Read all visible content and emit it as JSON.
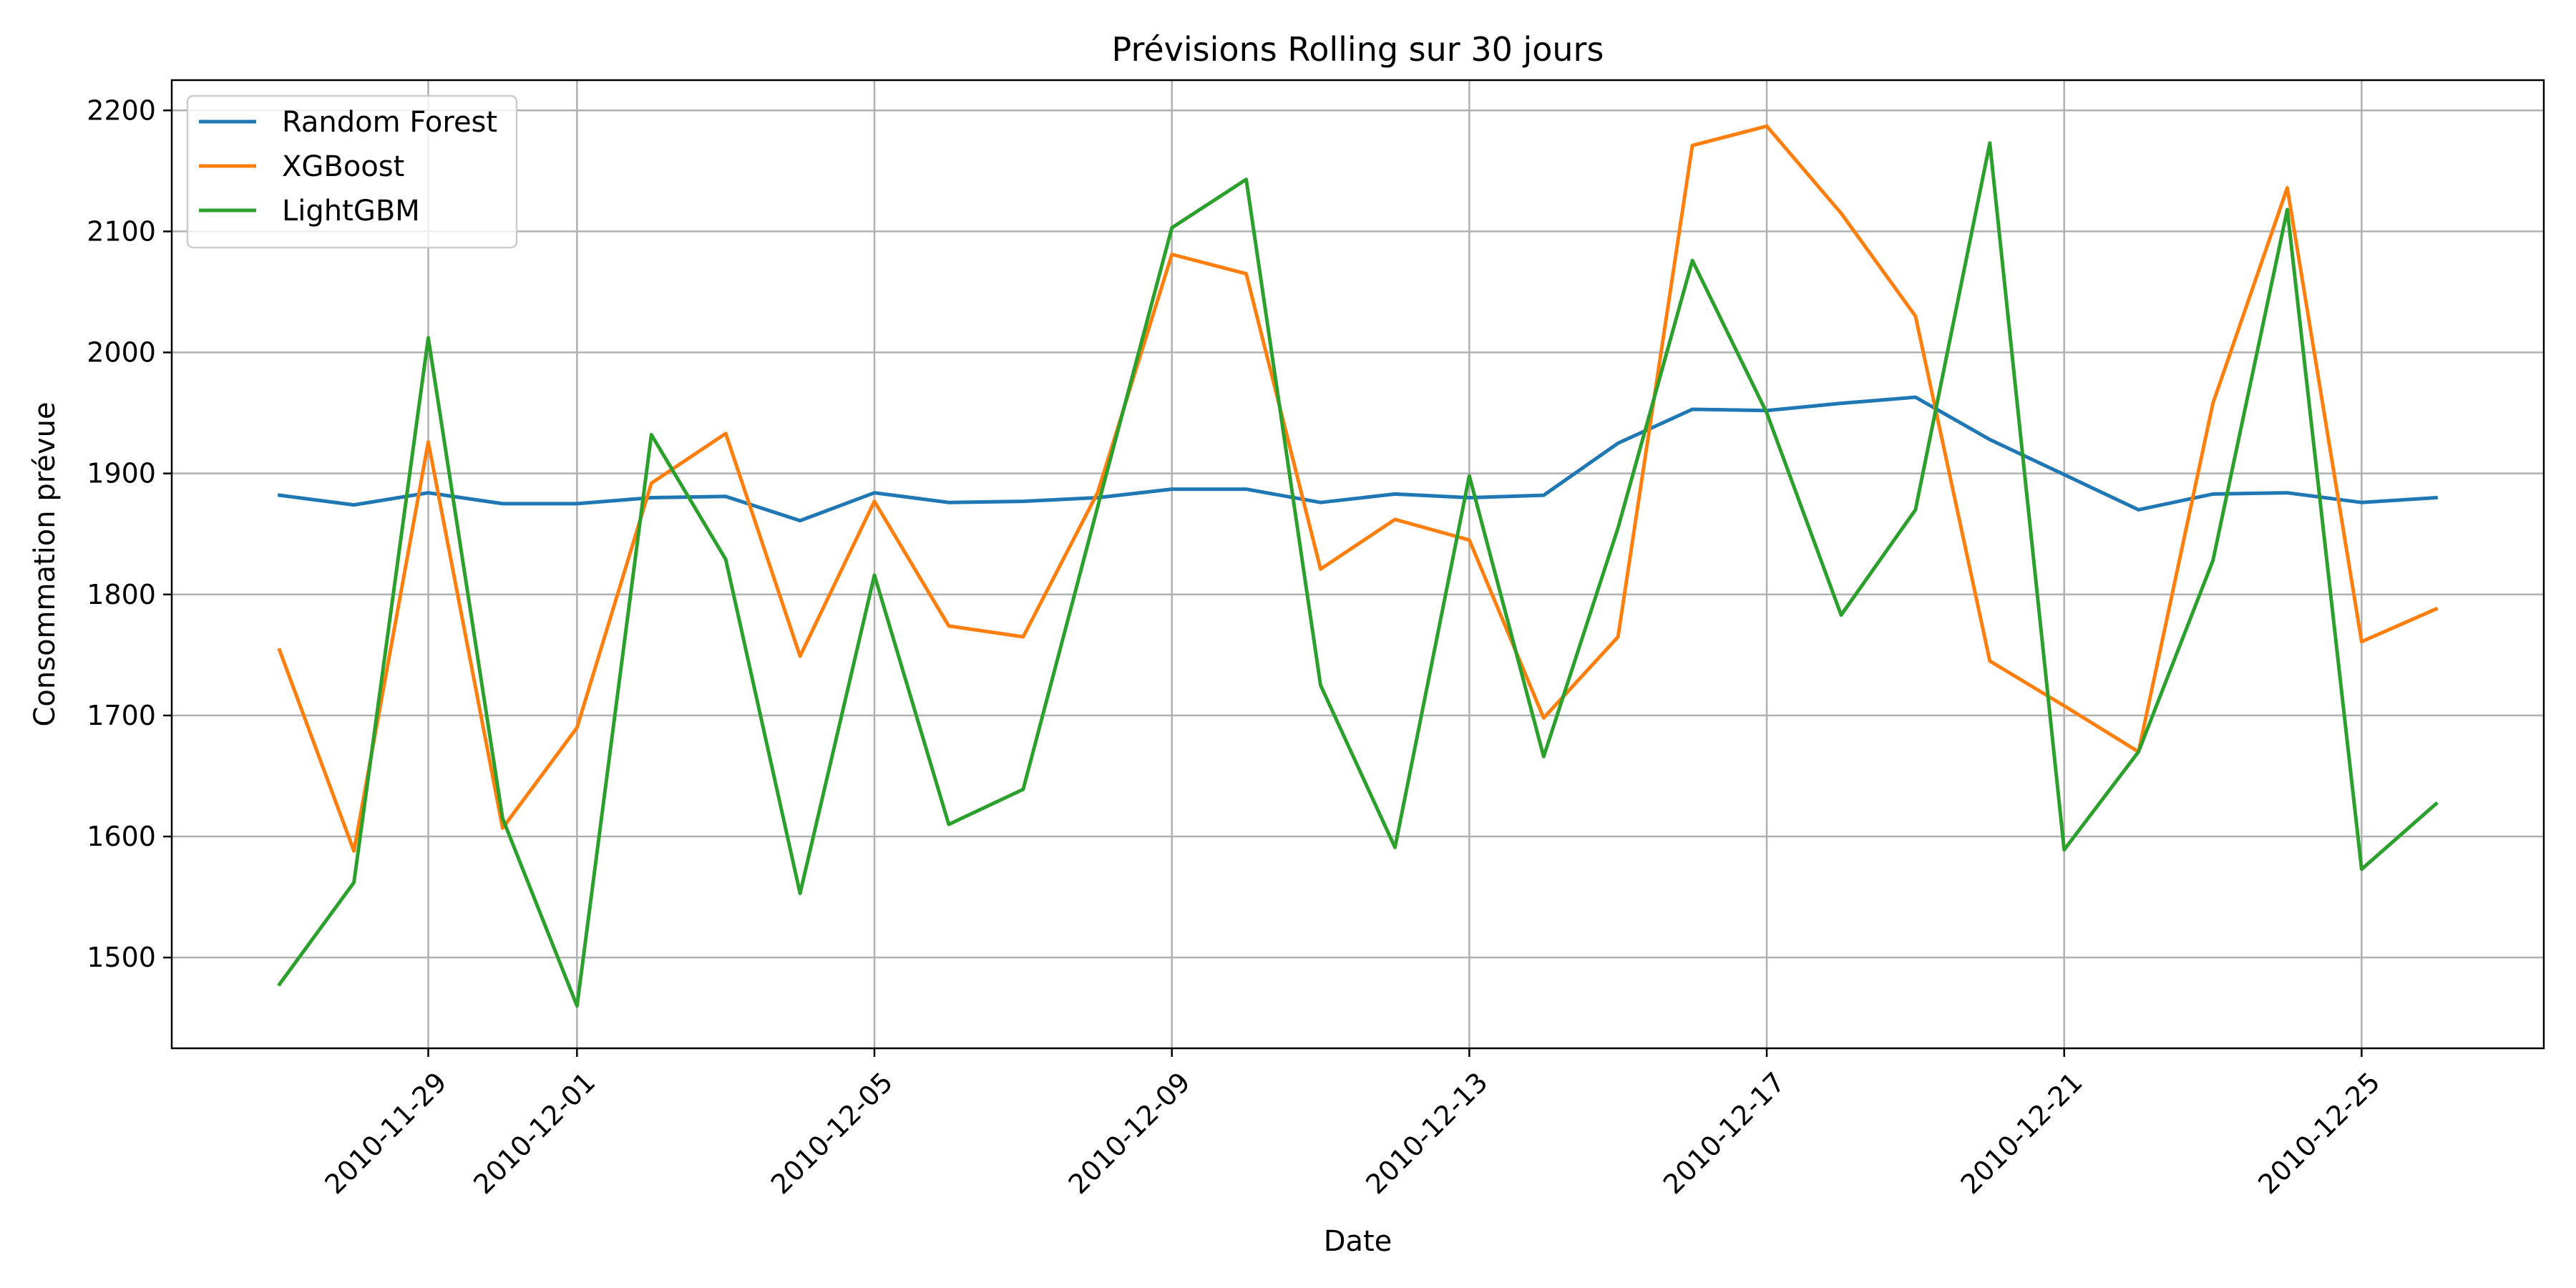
{
  "chart_data": {
    "type": "line",
    "title": "Prévisions Rolling sur 30 jours",
    "xlabel": "Date",
    "ylabel": "Consommation prévue",
    "x_start": "2010-11-27",
    "x": [
      "2010-11-27",
      "2010-11-28",
      "2010-11-29",
      "2010-11-30",
      "2010-12-01",
      "2010-12-02",
      "2010-12-03",
      "2010-12-04",
      "2010-12-05",
      "2010-12-06",
      "2010-12-07",
      "2010-12-08",
      "2010-12-09",
      "2010-12-10",
      "2010-12-11",
      "2010-12-12",
      "2010-12-13",
      "2010-12-14",
      "2010-12-15",
      "2010-12-16",
      "2010-12-17",
      "2010-12-18",
      "2010-12-19",
      "2010-12-20",
      "2010-12-21",
      "2010-12-22",
      "2010-12-23",
      "2010-12-24",
      "2010-12-25",
      "2010-12-26"
    ],
    "x_ticks": [
      "2010-11-29",
      "2010-12-01",
      "2010-12-05",
      "2010-12-09",
      "2010-12-13",
      "2010-12-17",
      "2010-12-21",
      "2010-12-25"
    ],
    "ylim": [
      1425,
      2225
    ],
    "y_ticks": [
      1500,
      1600,
      1700,
      1800,
      1900,
      2000,
      2100,
      2200
    ],
    "grid": true,
    "legend_position": "upper-left",
    "series": [
      {
        "name": "Random Forest",
        "color": "#1f77b4",
        "values": [
          1882,
          1874,
          1884,
          1875,
          1875,
          1880,
          1881,
          1861,
          1884,
          1876,
          1877,
          1880,
          1887,
          1887,
          1876,
          1883,
          1880,
          1882,
          1925,
          1953,
          1952,
          1958,
          1963,
          1928,
          1899,
          1870,
          1883,
          1884,
          1876,
          1880
        ]
      },
      {
        "name": "XGBoost",
        "color": "#ff7f0e",
        "values": [
          1754,
          1588,
          1926,
          1607,
          1690,
          1892,
          1933,
          1749,
          1877,
          1774,
          1765,
          1884,
          2081,
          2065,
          1821,
          1862,
          1845,
          1698,
          1765,
          2171,
          2187,
          2115,
          2030,
          1745,
          1708,
          1670,
          1958,
          2136,
          1761,
          1788
        ]
      },
      {
        "name": "LightGBM",
        "color": "#2ca02c",
        "values": [
          1478,
          1562,
          2012,
          1615,
          1460,
          1932,
          1829,
          1553,
          1816,
          1610,
          1639,
          1872,
          2103,
          2143,
          1725,
          1591,
          1898,
          1666,
          1855,
          2076,
          1950,
          1783,
          1870,
          2173,
          1589,
          1670,
          1828,
          2118,
          1573,
          1627
        ]
      }
    ]
  }
}
